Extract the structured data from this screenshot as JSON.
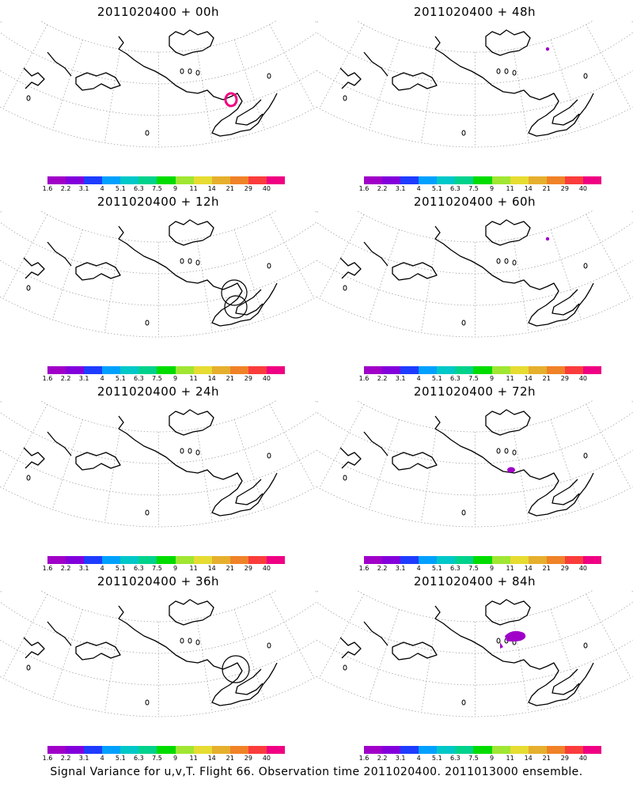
{
  "panels": [
    {
      "title": "2011020400 + 00h",
      "ring": "pink",
      "blobs": [],
      "circles": []
    },
    {
      "title": "2011020400 + 48h",
      "ring": null,
      "blobs": [
        "dot-ne"
      ],
      "circles": []
    },
    {
      "title": "2011020400 + 12h",
      "ring": null,
      "blobs": [],
      "circles": [
        "double"
      ]
    },
    {
      "title": "2011020400 + 60h",
      "ring": null,
      "blobs": [
        "dot-ne"
      ],
      "circles": []
    },
    {
      "title": "2011020400 + 24h",
      "ring": null,
      "blobs": [],
      "circles": []
    },
    {
      "title": "2011020400 + 72h",
      "ring": null,
      "blobs": [
        "small-center"
      ],
      "circles": []
    },
    {
      "title": "2011020400 + 36h",
      "ring": null,
      "blobs": [],
      "circles": [
        "single"
      ]
    },
    {
      "title": "2011020400 + 84h",
      "ring": null,
      "blobs": [
        "large-center"
      ],
      "circles": []
    }
  ],
  "colorbar": {
    "labels": [
      "1.6",
      "2.2",
      "3.1",
      "4",
      "5.1",
      "6.3",
      "7.5",
      "9",
      "11",
      "14",
      "21",
      "29",
      "40"
    ],
    "colors": [
      "#a000c8",
      "#8200dc",
      "#1e3cff",
      "#00a0ff",
      "#00c8c8",
      "#00d28c",
      "#00dc00",
      "#a0e632",
      "#e6dc32",
      "#e6af2d",
      "#f08228",
      "#fa3c3c",
      "#f00082"
    ]
  },
  "caption": "Signal Variance for u,v,T. Flight 66. Observation time 2011020400. 2011013000 ensemble."
}
